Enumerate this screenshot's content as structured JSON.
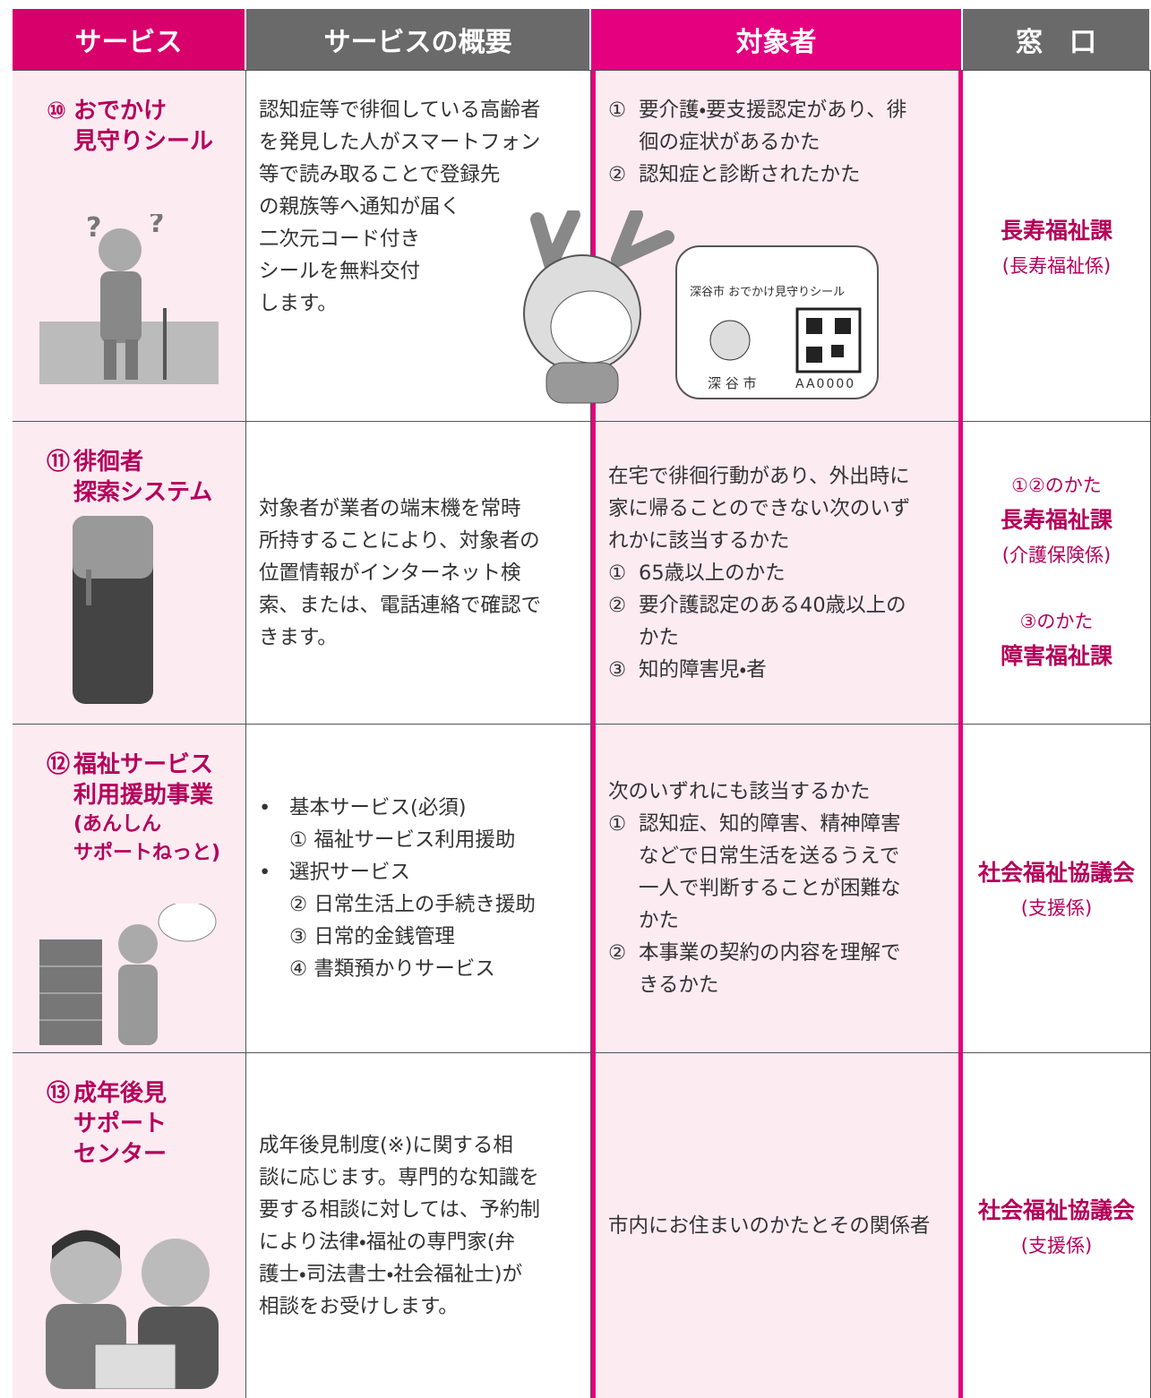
{
  "header": [
    "サービス",
    "サービスの概要",
    "対象者",
    "窓　口"
  ],
  "rows": [
    {
      "service": {
        "number": "⑩",
        "lines": [
          "おでかけ",
          "見守りシール"
        ],
        "note": []
      },
      "summary": [
        "認知症等で徘徊している高齢者",
        "を発見した人がスマートフォン",
        "等で読み取ることで登録先",
        "の親族等へ通知が届く",
        "二次元コード付き",
        "シールを無料交付",
        "します。"
      ],
      "target": [
        {
          "number": "①",
          "lines": [
            "要介護・要支援認定があり、徘",
            "徊の症状があるかた"
          ]
        },
        {
          "number": "②",
          "lines": [
            "認知症と診断されたかた"
          ]
        }
      ],
      "contact": [
        {
          "text": "長寿福祉課",
          "kind": "main"
        },
        {
          "text": "(長寿福祉係)",
          "kind": "sub"
        }
      ]
    },
    {
      "service": {
        "number": "⑪",
        "lines": [
          "徘徊者",
          "探索システム"
        ],
        "note": []
      },
      "summary": [
        "対象者が業者の端末機を常時",
        "所持することにより、対象者の",
        "位置情報がインターネット検",
        "索、または、電話連絡で確認で",
        "きます。"
      ],
      "target": [
        "在宅で徘徊行動があり、外出時に",
        "家に帰ることのできない次のいず",
        "れかに該当するかた",
        {
          "number": "①",
          "lines": [
            "65歳以上のかた"
          ]
        },
        {
          "number": "②",
          "lines": [
            "要介護認定のある40歳以上の",
            "かた"
          ]
        },
        {
          "number": "③",
          "lines": [
            "知的障害児・者"
          ]
        }
      ],
      "contact": [
        {
          "text": "①②のかた",
          "kind": "small"
        },
        {
          "text": "長寿福祉課",
          "kind": "main"
        },
        {
          "text": "(介護保険係)",
          "kind": "sub"
        },
        {
          "text": "③のかた",
          "kind": "small"
        },
        {
          "text": "障害福祉課",
          "kind": "main"
        }
      ]
    },
    {
      "service": {
        "number": "⑫",
        "lines": [
          "福祉サービス",
          "利用援助事業"
        ],
        "note": [
          "(あんしん",
          "サポートねっと)"
        ]
      },
      "summary": [
        {
          "number": "•",
          "lines": [
            "基本サービス(必須)",
            "① 福祉サービス利用援助"
          ]
        },
        {
          "number": "•",
          "lines": [
            "選択サービス",
            "② 日常生活上の手続き援助",
            "③ 日常的金銭管理",
            "④ 書類預かりサービス"
          ]
        }
      ],
      "target": [
        "次のいずれにも該当するかた",
        {
          "number": "①",
          "lines": [
            "認知症、知的障害、精神障害",
            "などで日常生活を送るうえで",
            "一人で判断することが困難な",
            "かた"
          ]
        },
        {
          "number": "②",
          "lines": [
            "本事業の契約の内容を理解で",
            "きるかた"
          ]
        }
      ],
      "contact": [
        {
          "text": "社会福祉協議会",
          "kind": "main"
        },
        {
          "text": "(支援係)",
          "kind": "sub"
        }
      ]
    },
    {
      "service": {
        "number": "⑬",
        "lines": [
          "成年後見",
          "サポート",
          "センター"
        ],
        "note": []
      },
      "summary": [
        "成年後見制度(※)に関する相",
        "談に応じます。専門的な知識を",
        "要する相談に対しては、予約制",
        "により法律・福祉の専門家(弁",
        "護士・司法書士・社会福祉士)が",
        "相談をお受けします。"
      ],
      "target": [
        "市内にお住まいのかたとその関係者"
      ],
      "contact": [
        {
          "text": "社会福祉協議会",
          "kind": "main"
        },
        {
          "text": "(支援係)",
          "kind": "sub"
        }
      ]
    }
  ],
  "sticker": {
    "title": "深谷市 おでかけ見守りシール",
    "name": "深 谷 市",
    "code": "AA0000"
  }
}
